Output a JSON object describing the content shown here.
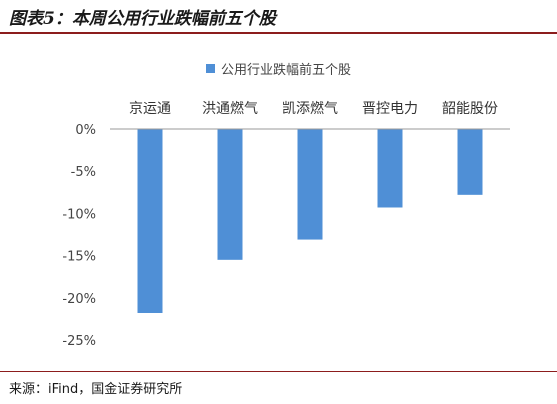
{
  "header": {
    "title": "图表5：本周公用行业跌幅前五个股"
  },
  "footer": {
    "source": "来源：iFind，国金证券研究所"
  },
  "colors": {
    "bar": "#4f8fd6",
    "accent_rule": "#8c1d1d",
    "axis": "#999999"
  },
  "chart_data": {
    "type": "bar",
    "categories": [
      "京运通",
      "洪通燃气",
      "凯添燃气",
      "晋控电力",
      "韶能股份"
    ],
    "series": [
      {
        "name": "公用行业跌幅前五个股",
        "values": [
          -21.8,
          -15.5,
          -13.1,
          -9.3,
          -7.8
        ]
      }
    ],
    "ylim": [
      -25,
      0
    ],
    "yticks": [
      0,
      -5,
      -10,
      -15,
      -20,
      -25
    ],
    "ytick_labels": [
      "0%",
      "-5%",
      "-10%",
      "-15%",
      "-20%",
      "-25%"
    ],
    "legend_position": "top-center",
    "grid": false,
    "category_axis_position": "top"
  }
}
